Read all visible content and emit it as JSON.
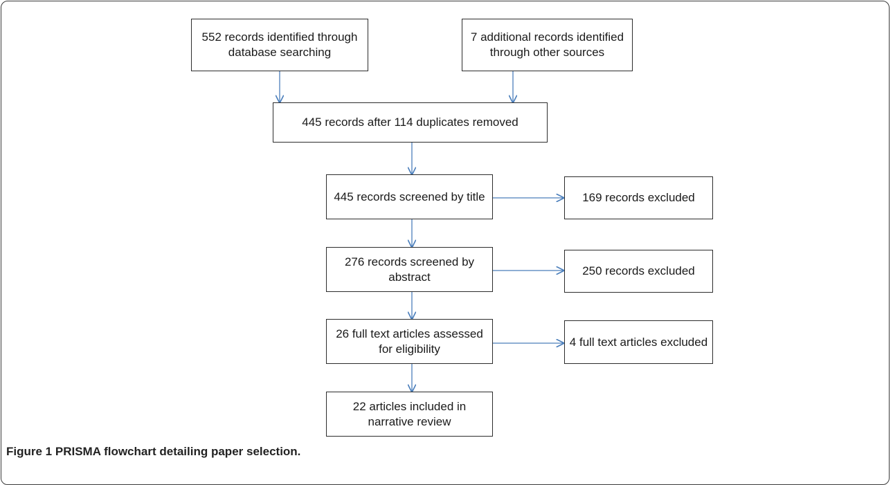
{
  "flowchart": {
    "db_records": "552 records identified through database searching",
    "other_records": "7 additional records identified through other sources",
    "after_duplicates": "445 records after 114 duplicates removed",
    "title_screened": "445 records screened by title",
    "title_excluded": "169 records excluded",
    "abstract_screened": "276 records screened by abstract",
    "abstract_excluded": "250 records excluded",
    "fulltext_assessed": "26 full text articles assessed for eligibility",
    "fulltext_excluded": "4 full text articles excluded",
    "included": "22 articles included in narrative review"
  },
  "caption": {
    "label": "Figure 1",
    "title": "PRISMA flowchart detailing paper selection."
  },
  "colors": {
    "arrow": "#4a7ebb",
    "box_border": "#2b2b2b"
  }
}
